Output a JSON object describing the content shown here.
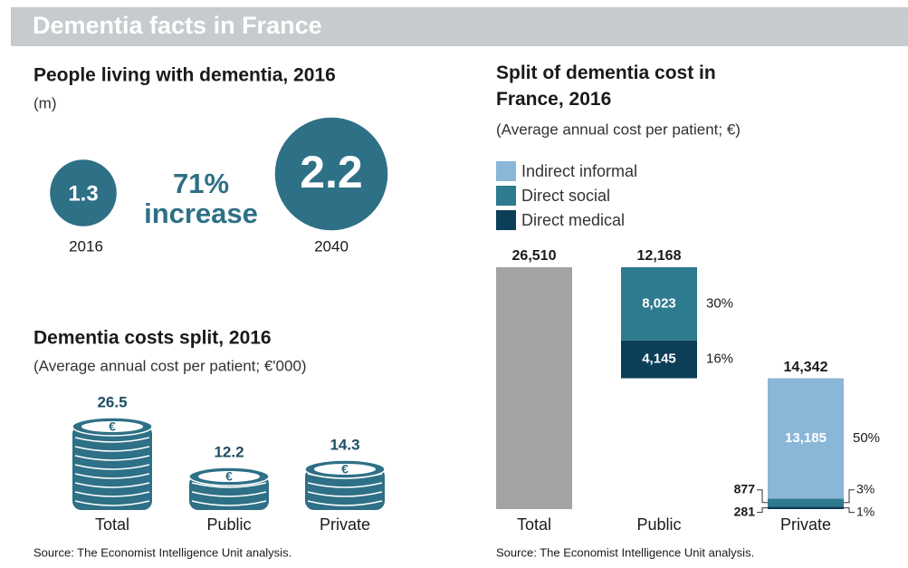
{
  "header": {
    "title": "Dementia facts in France"
  },
  "people": {
    "title": "People living with dementia, 2016",
    "unit": "(m)",
    "values": [
      1.3,
      2.2
    ],
    "labels": [
      "2016",
      "2040"
    ],
    "increase": "71%",
    "increase_text": "increase",
    "color": "#2e7086"
  },
  "costs": {
    "title": "Dementia costs split, 2016",
    "subtitle": "(Average annual cost per patient; €'000)",
    "categories": [
      "Total",
      "Public",
      "Private"
    ],
    "values": [
      26.5,
      12.2,
      14.3
    ],
    "color": "#2e7086",
    "source": "Source: The Economist Intelligence Unit analysis."
  },
  "chart_data": {
    "type": "bar",
    "title": "Split of dementia cost in France, 2016",
    "subtitle": "(Average annual cost per patient; €)",
    "categories": [
      "Total",
      "Public",
      "Private"
    ],
    "totals": [
      26510,
      12168,
      14342
    ],
    "total_labels": [
      "26,510",
      "12,168",
      "14,342"
    ],
    "total_color": "#a3a3a3",
    "series": [
      {
        "name": "Indirect informal",
        "color": "#8ab6d8",
        "values": [
          null,
          null,
          13185
        ],
        "value_labels": [
          null,
          null,
          "13,185"
        ],
        "percent": [
          null,
          null,
          50
        ],
        "percent_labels": [
          null,
          null,
          "50%"
        ]
      },
      {
        "name": "Direct social",
        "color": "#2e7a8e",
        "values": [
          null,
          8023,
          877
        ],
        "value_labels": [
          null,
          "8,023",
          "877"
        ],
        "percent": [
          null,
          30,
          3
        ],
        "percent_labels": [
          null,
          "30%",
          "3%"
        ]
      },
      {
        "name": "Direct medical",
        "color": "#0c3e58",
        "values": [
          null,
          4145,
          281
        ],
        "value_labels": [
          null,
          "4,145",
          "281"
        ],
        "percent": [
          null,
          16,
          1
        ],
        "percent_labels": [
          null,
          "16%",
          "1%"
        ]
      }
    ],
    "source": "Source: The Economist Intelligence Unit analysis."
  }
}
